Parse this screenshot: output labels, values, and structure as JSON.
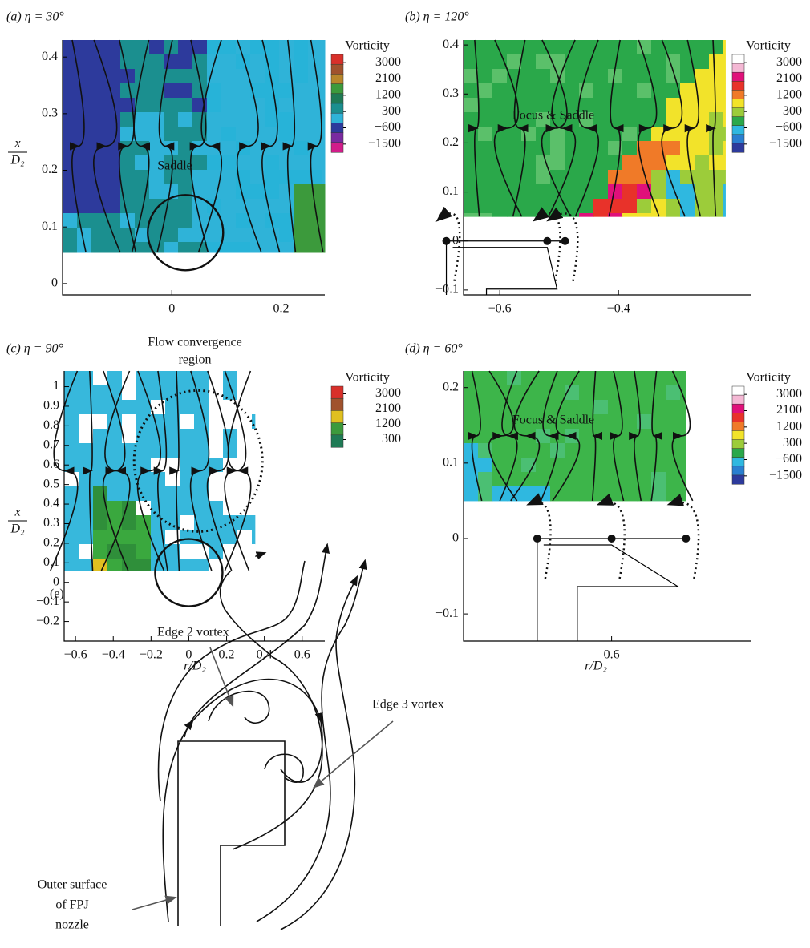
{
  "chart_data": [
    {
      "type": "contour",
      "title": "(a) η = 30°",
      "ylabel": {
        "numerator": "x",
        "denominator": "D₂"
      },
      "xlim": [
        -0.2,
        0.28
      ],
      "ylim": [
        -0.02,
        0.43
      ],
      "xticks": [
        0,
        0.2
      ],
      "yticks": [
        0,
        0.1,
        0.2,
        0.3,
        0.4
      ],
      "colorbar": {
        "title": "Vorticity",
        "ticks": [
          3000,
          2100,
          1200,
          300,
          {
            "value": -600,
            "label": "−600"
          },
          {
            "value": -1500,
            "label": "−1500"
          }
        ],
        "colors": [
          "#d8302a",
          "#a0522d",
          "#b8862b",
          "#3c9a3c",
          "#1f7a55",
          "#1b8f8f",
          "#2fb3d8",
          "#2d3a9c",
          "#7a2aa0",
          "#d21d8a"
        ]
      },
      "annotations": [
        "Saddle"
      ]
    },
    {
      "type": "contour",
      "title": "(b) η = 120°",
      "xlim": [
        -0.661,
        -0.176
      ],
      "ylim": [
        -0.11,
        0.41
      ],
      "xticks": [
        {
          "value": -0.6,
          "label": "−0.6"
        },
        {
          "value": -0.4,
          "label": "−0.4"
        }
      ],
      "yticks": [
        {
          "value": -0.1,
          "label": "−0.1"
        },
        0,
        0.1,
        0.2,
        0.3,
        0.4
      ],
      "colorbar": {
        "title": "Vorticity",
        "ticks": [
          3000,
          2100,
          1200,
          300,
          {
            "value": -600,
            "label": "−600"
          },
          {
            "value": -1500,
            "label": "−1500"
          }
        ],
        "colors": [
          "#ffffff",
          "#f4b8d4",
          "#e0107a",
          "#e8322a",
          "#f07a28",
          "#f2e32a",
          "#9ccc3a",
          "#2aa84a",
          "#2fb8e0",
          "#2a7fd0",
          "#2d3a9c"
        ]
      },
      "annotations": [
        "Focus & Saddle"
      ]
    },
    {
      "type": "contour",
      "title": "(c) η = 90°",
      "ylabel": {
        "numerator": "x",
        "denominator": "D₂"
      },
      "xlabel": "r/D₂",
      "xlim": [
        -0.66,
        0.72
      ],
      "ylim": [
        -0.3,
        1.08
      ],
      "xticks": [
        {
          "value": -0.6,
          "label": "−0.6"
        },
        {
          "value": -0.4,
          "label": "−0.4"
        },
        {
          "value": -0.2,
          "label": "−0.2"
        },
        0,
        0.2,
        0.4,
        0.6
      ],
      "yticks": [
        {
          "value": -0.2,
          "label": "−0.2"
        },
        {
          "value": -0.1,
          "label": "−0.1"
        },
        0,
        0.1,
        0.2,
        0.3,
        0.4,
        0.5,
        0.6,
        0.7,
        0.8,
        0.9,
        1.0
      ],
      "colorbar": {
        "title": "Vorticity",
        "ticks": [
          3000,
          2100,
          1200,
          300
        ],
        "colors": [
          "#d8302a",
          "#a0522d",
          "#e0c020",
          "#3c9a3c",
          "#1f7a55"
        ]
      },
      "annotations": [
        "Flow convergence",
        "region"
      ]
    },
    {
      "type": "contour",
      "title": "(d) η = 60°",
      "xlabel": "r/D₂",
      "xlim": [
        0.401,
        0.788
      ],
      "ylim": [
        -0.136,
        0.222
      ],
      "xticks": [
        0.6
      ],
      "yticks": [
        {
          "value": -0.1,
          "label": "−0.1"
        },
        0,
        0.1,
        0.2
      ],
      "colorbar": {
        "title": "Vorticity",
        "ticks": [
          3000,
          2100,
          1200,
          300,
          {
            "value": -600,
            "label": "−600"
          },
          {
            "value": -1500,
            "label": "−1500"
          }
        ],
        "colors": [
          "#ffffff",
          "#f4b8d4",
          "#e0107a",
          "#e8322a",
          "#f07a28",
          "#f2e32a",
          "#9ccc3a",
          "#2aa84a",
          "#2fb8e0",
          "#2a7fd0",
          "#2d3a9c"
        ]
      },
      "annotations": [
        "Focus & Saddle"
      ]
    }
  ],
  "diagram": {
    "label": "(e)",
    "edge2": "Edge 2 vortex",
    "edge3": "Edge 3 vortex",
    "nozzle": [
      "Outer surface",
      "of FPJ",
      "nozzle"
    ]
  }
}
